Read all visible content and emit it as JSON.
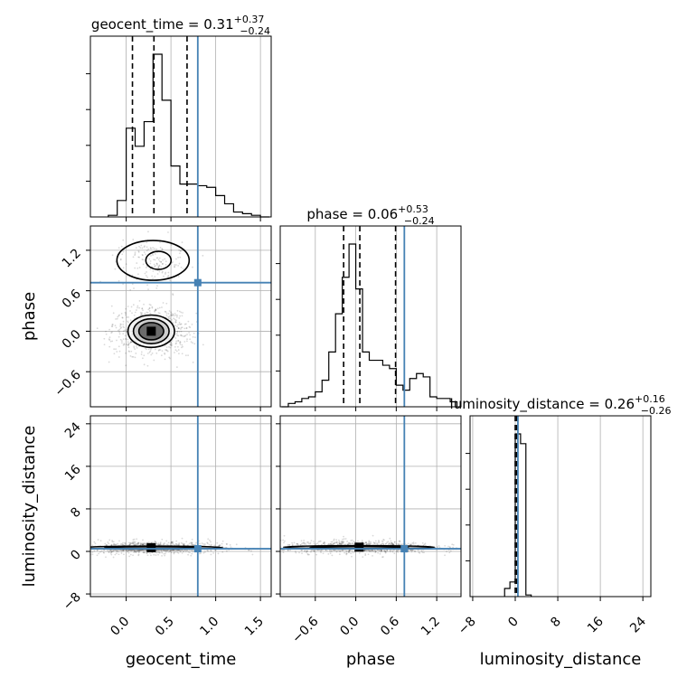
{
  "chart_data": {
    "type": "corner",
    "parameters": [
      "geocent_time",
      "phase",
      "luminosity_distance"
    ],
    "truths": [
      0.8,
      0.72,
      0.5
    ],
    "truth_color": "#4682b4",
    "quantile_color": "#000000",
    "grid": true,
    "titles": [
      {
        "param": "geocent_time",
        "median": "0.31",
        "plus": "+0.37",
        "minus": "−0.24",
        "quantiles": [
          0.07,
          0.31,
          0.68
        ]
      },
      {
        "param": "phase",
        "median": "0.06",
        "plus": "+0.53",
        "minus": "−0.24",
        "quantiles": [
          -0.18,
          0.06,
          0.59
        ]
      },
      {
        "param": "luminosity_distance",
        "median": "0.26",
        "plus": "+0.16",
        "minus": "−0.26",
        "quantiles": [
          0.0,
          0.26,
          0.42
        ]
      }
    ],
    "axes": {
      "geocent_time": {
        "range": [
          -0.4,
          1.62
        ],
        "ticks": [
          0.0,
          0.5,
          1.0,
          1.5
        ],
        "tick_labels": [
          "0.0",
          "0.5",
          "1.0",
          "1.5"
        ]
      },
      "phase": {
        "range": [
          -1.12,
          1.56
        ],
        "ticks": [
          -0.6,
          0.0,
          0.6,
          1.2
        ],
        "tick_labels": [
          "−0.6",
          "0.0",
          "0.6",
          "1.2"
        ]
      },
      "luminosity_distance": {
        "range": [
          -8.5,
          25.5
        ],
        "ticks": [
          -8,
          0,
          8,
          16,
          24
        ],
        "tick_labels": [
          "−8",
          "0",
          "8",
          "16",
          "24"
        ]
      }
    },
    "histograms": [
      {
        "param": "geocent_time",
        "bins": [
          -0.2,
          -0.1,
          0.0,
          0.1,
          0.2,
          0.3,
          0.4,
          0.5,
          0.6,
          0.7,
          0.8,
          0.9,
          1.0,
          1.1,
          1.2,
          1.3,
          1.4,
          1.5,
          1.6
        ],
        "counts": [
          0.01,
          0.1,
          0.54,
          0.43,
          0.58,
          0.99,
          0.71,
          0.31,
          0.2,
          0.2,
          0.19,
          0.18,
          0.13,
          0.08,
          0.03,
          0.02,
          0.01,
          0.0
        ]
      },
      {
        "param": "phase",
        "bins": [
          -1.1,
          -1.0,
          -0.9,
          -0.8,
          -0.7,
          -0.6,
          -0.5,
          -0.4,
          -0.3,
          -0.2,
          -0.1,
          0.0,
          0.1,
          0.2,
          0.3,
          0.4,
          0.5,
          0.6,
          0.7,
          0.8,
          0.9,
          1.0,
          1.1,
          1.2,
          1.3,
          1.4,
          1.5
        ],
        "counts": [
          0.0,
          0.02,
          0.03,
          0.05,
          0.06,
          0.09,
          0.16,
          0.33,
          0.56,
          0.78,
          0.98,
          0.71,
          0.33,
          0.28,
          0.28,
          0.25,
          0.23,
          0.13,
          0.1,
          0.17,
          0.2,
          0.18,
          0.06,
          0.05,
          0.05,
          0.03
        ]
      },
      {
        "param": "luminosity_distance",
        "bins": [
          -2.0,
          -1.0,
          0.0,
          1.0,
          2.0,
          3.0
        ],
        "counts": [
          0.05,
          0.09,
          1.0,
          0.94,
          0.01
        ]
      }
    ],
    "pairs": [
      {
        "x": "geocent_time",
        "y": "phase",
        "mode": [
          0.28,
          0.0
        ],
        "spread": [
          0.13,
          0.12
        ],
        "secondary_mode": [
          0.3,
          1.05
        ],
        "contours": 3
      },
      {
        "x": "geocent_time",
        "y": "luminosity_distance",
        "mode": [
          0.28,
          0.7
        ],
        "spread": [
          0.25,
          0.4
        ],
        "contours": 2
      },
      {
        "x": "phase",
        "y": "luminosity_distance",
        "mode": [
          0.05,
          0.8
        ],
        "spread": [
          0.35,
          0.4
        ],
        "contours": 2
      }
    ]
  }
}
